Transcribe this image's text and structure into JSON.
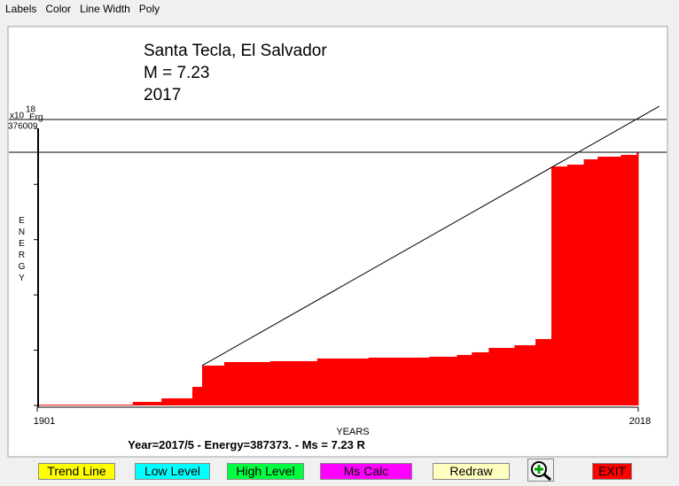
{
  "menu": [
    "Labels",
    "Color",
    "Line Width",
    "Poly"
  ],
  "chart_data": {
    "type": "step-area",
    "title_lines": [
      "Santa Tecla, El Salvador",
      "M = 7.23",
      "2017"
    ],
    "xlabel": "YEARS",
    "ylabel": "ENERGY",
    "y_multiplier": "x10",
    "y_exponent": "18",
    "y_unit": "Erg",
    "color": "#ff0000",
    "x": [
      1901,
      1919.6,
      1925.2,
      1931.2,
      1933.1,
      1937.4,
      1946.4,
      1955.5,
      1965.5,
      1977.3,
      1982.7,
      1985.6,
      1988.9,
      1993.9,
      1998.0,
      2001.1,
      2004.2,
      2007.4,
      2010.1,
      2014.6,
      2017.7
    ],
    "values": [
      1000,
      4800,
      9600,
      25200,
      54100,
      58900,
      60100,
      63700,
      64900,
      66100,
      68500,
      72100,
      78100,
      81700,
      90100,
      324300,
      326800,
      334000,
      337600,
      340000,
      343600
    ],
    "xlim": [
      1901,
      2018
    ],
    "ylim": [
      0,
      376009
    ],
    "xticks": [
      1901,
      2018
    ],
    "yticks": [
      376009
    ],
    "ytick_marks": [
      0,
      75000,
      150000,
      225000,
      300000
    ],
    "hlines": [
      388000,
      343600
    ],
    "trend_line": {
      "x": [
        1933.1,
        2022.1
      ],
      "values": [
        54100,
        406000
      ]
    }
  },
  "status": "Year=2017/5 - Energy=387373. - Ms = 7.23 R",
  "buttons": [
    {
      "label": "Trend Line",
      "color": "#ffff00"
    },
    {
      "label": "Low Level",
      "color": "#00ffff"
    },
    {
      "label": "High Level",
      "color": "#00ff40"
    },
    {
      "label": "Ms Calc",
      "color": "#ff00ff"
    },
    {
      "label": "Redraw",
      "color": "#ffffc0"
    },
    {
      "label": "EXIT",
      "color": "#ff0000"
    }
  ]
}
